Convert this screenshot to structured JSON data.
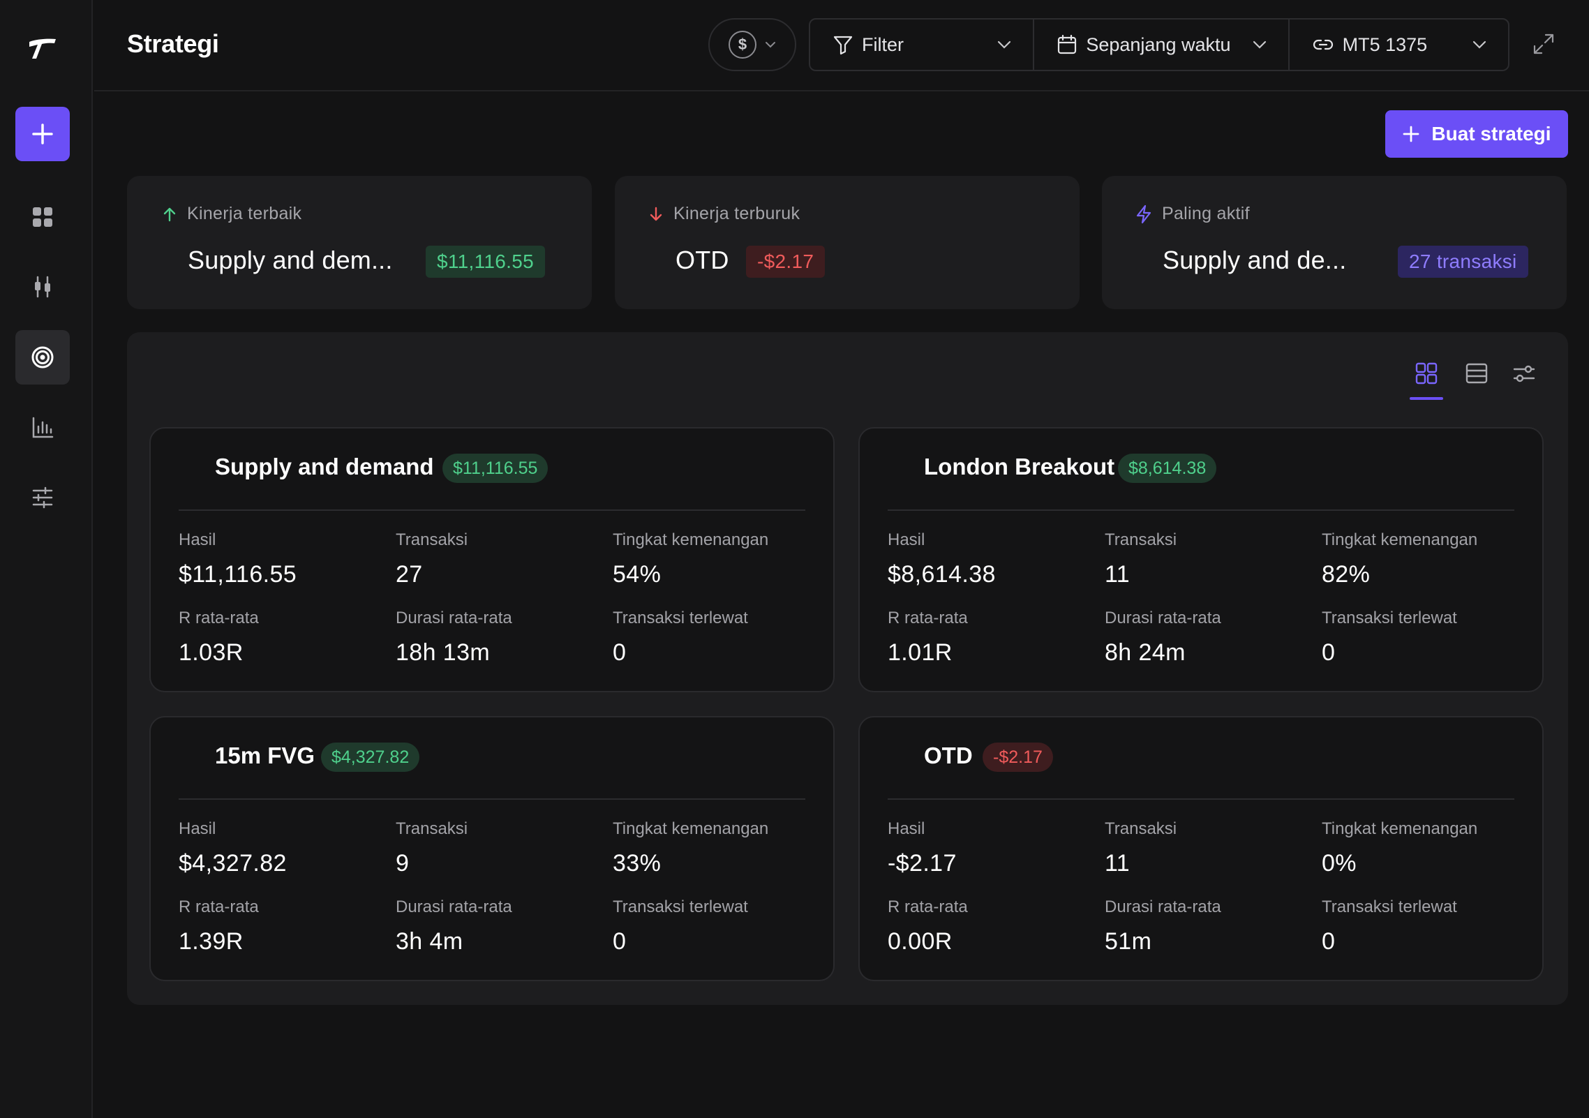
{
  "header": {
    "title": "Strategi",
    "currency_symbol": "$",
    "filter_label": "Filter",
    "date_label": "Sepanjang waktu",
    "account_label": "MT5 1375"
  },
  "sidebar": {
    "items": [
      {
        "name": "dashboard",
        "icon": "grid-icon"
      },
      {
        "name": "trades",
        "icon": "candlestick-icon"
      },
      {
        "name": "strategies",
        "icon": "target-icon",
        "active": true
      },
      {
        "name": "reports",
        "icon": "bar-chart-icon"
      },
      {
        "name": "settings",
        "icon": "sliders-icon"
      }
    ]
  },
  "actions": {
    "create_strategy": "Buat strategi"
  },
  "summary": {
    "best": {
      "label": "Kinerja terbaik",
      "name": "Supply and dem...",
      "value": "$11,116.55"
    },
    "worst": {
      "label": "Kinerja terburuk",
      "name": "OTD",
      "value": "-$2.17"
    },
    "active": {
      "label": "Paling aktif",
      "name": "Supply and de...",
      "value": "27 transaksi"
    }
  },
  "labels": {
    "result": "Hasil",
    "trades": "Transaksi",
    "win_rate": "Tingkat kemenangan",
    "avg_r": "R rata-rata",
    "avg_duration": "Durasi rata-rata",
    "missed_trades": "Transaksi terlewat"
  },
  "strategies": [
    {
      "name": "Supply and demand",
      "badge": "$11,116.55",
      "result": "$11,116.55",
      "trades": "27",
      "win_rate": "54%",
      "avg_r": "1.03R",
      "avg_duration": "18h 13m",
      "missed": "0"
    },
    {
      "name": "London Breakout",
      "badge": "$8,614.38",
      "result": "$8,614.38",
      "trades": "11",
      "win_rate": "82%",
      "avg_r": "1.01R",
      "avg_duration": "8h 24m",
      "missed": "0"
    },
    {
      "name": "15m FVG",
      "badge": "$4,327.82",
      "result": "$4,327.82",
      "trades": "9",
      "win_rate": "33%",
      "avg_r": "1.39R",
      "avg_duration": "3h 4m",
      "missed": "0"
    },
    {
      "name": "OTD",
      "badge": "-$2.17",
      "result": "-$2.17",
      "trades": "11",
      "win_rate": "0%",
      "avg_r": "0.00R",
      "avg_duration": "51m",
      "missed": "0"
    }
  ],
  "colors": {
    "accent": "#6b4ff6",
    "positive": "#4fd08c",
    "negative": "#f05b5b"
  }
}
